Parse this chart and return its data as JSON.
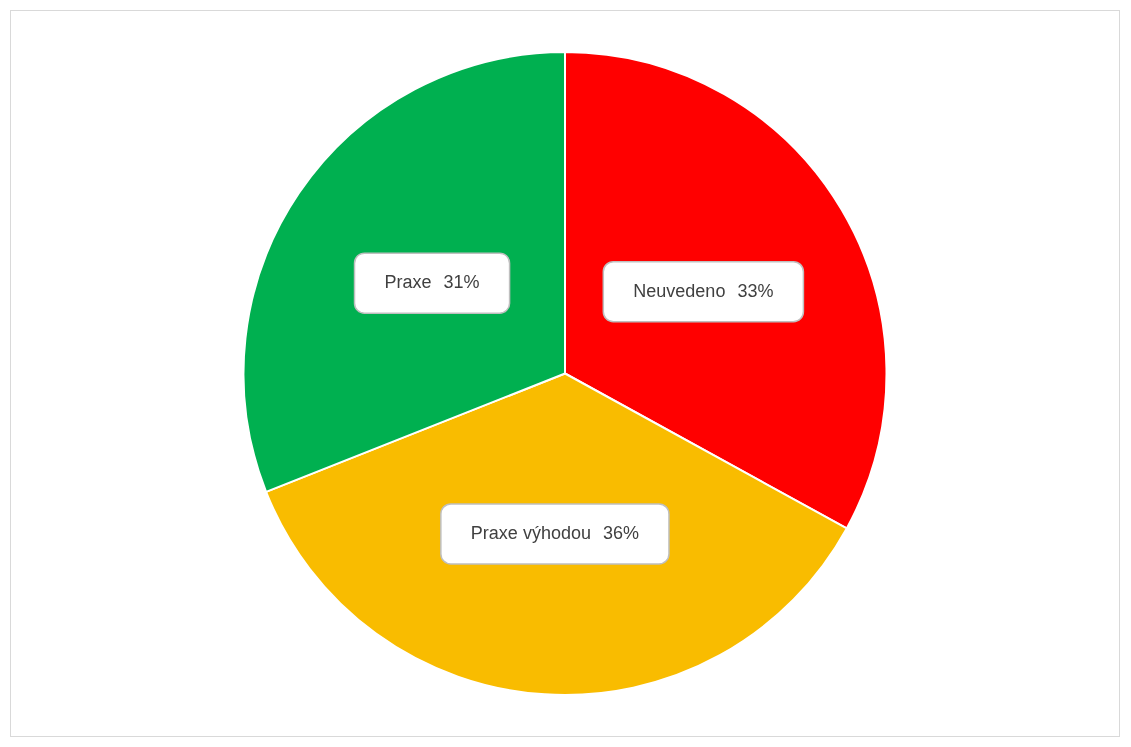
{
  "chart_data": {
    "type": "pie",
    "categories": [
      "Neuvedeno",
      "Praxe výhodou",
      "Praxe"
    ],
    "values": [
      33,
      36,
      31
    ],
    "value_labels": [
      "33%",
      "36%",
      "31%"
    ],
    "colors": [
      "#ff0000",
      "#f9bc00",
      "#00b050"
    ],
    "legend": false
  }
}
